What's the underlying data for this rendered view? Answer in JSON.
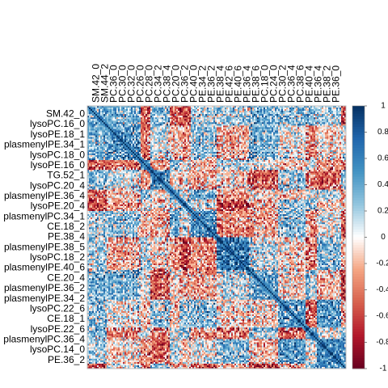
{
  "chart_data": {
    "type": "heatmap",
    "title": "",
    "xlabel": "",
    "ylabel": "",
    "matrix_size": 160,
    "diagonal_value": 1,
    "color_scale": {
      "range": [
        -1,
        1
      ],
      "stops": [
        {
          "value": -1,
          "color": "#67001F"
        },
        {
          "value": -0.75,
          "color": "#B2182B"
        },
        {
          "value": -0.5,
          "color": "#D6604D"
        },
        {
          "value": -0.25,
          "color": "#F4A582"
        },
        {
          "value": 0,
          "color": "#FFFFFF"
        },
        {
          "value": 0.25,
          "color": "#92C5DE"
        },
        {
          "value": 0.5,
          "color": "#4393C3"
        },
        {
          "value": 0.75,
          "color": "#2166AC"
        },
        {
          "value": 1,
          "color": "#053061"
        }
      ],
      "ticks": [
        {
          "value": 1,
          "label": "1"
        },
        {
          "value": 0.8,
          "label": "0.8"
        },
        {
          "value": 0.6,
          "label": "0.6"
        },
        {
          "value": 0.4,
          "label": "0.4"
        },
        {
          "value": 0.2,
          "label": "0.2"
        },
        {
          "value": 0,
          "label": "0"
        },
        {
          "value": -0.2,
          "label": "-0.2"
        },
        {
          "value": -0.4,
          "label": "-0.4"
        },
        {
          "value": -0.6,
          "label": "-0.6"
        },
        {
          "value": -0.8,
          "label": "-0.8"
        },
        {
          "value": -1,
          "label": "-1"
        }
      ]
    },
    "column_labels": [
      "SM.42_0",
      "SM.44_2",
      "PC.36_0",
      "PC.30_0",
      "PC.32_0",
      "PC.26_0",
      "PC.28_0",
      "PC.34_2",
      "PC.38_4",
      "PC.20_0",
      "PC.36_2",
      "PC.40_0",
      "PE.34_2",
      "PE.36_2",
      "PE.38_4",
      "PE.42_6",
      "PE.40_6",
      "PE.36_4",
      "PE.38_6",
      "PC.18_0",
      "PC.24_0",
      "PC.30_2",
      "PC.36_4",
      "PC.38_6",
      "PE.40_4",
      "PE.36_4",
      "PE.38_2",
      "PE.36_0"
    ],
    "row_labels": [
      "SM.42_0",
      "lysoPC.16_0",
      "lysoPE.18_1",
      "plasmenylPE.34_1",
      "lysoPC.18_0",
      "lysoPE.16_0",
      "TG.52_1",
      "lysoPC.20_4",
      "plasmenylPE.36_4",
      "lysoPE.20_4",
      "plasmenylPC.34_1",
      "CE.18_2",
      "PE.38_4",
      "plasmenylPE.38_5",
      "lysoPC.18_2",
      "plasmenylPE.40_6",
      "CE.20_4",
      "plasmenylPE.36_2",
      "plasmenylPE.34_2",
      "lysoPC.22_6",
      "CE.18_1",
      "lysoPE.22_6",
      "plasmenylPC.36_4",
      "lysoPC.14_0",
      "PE.36_2"
    ]
  }
}
